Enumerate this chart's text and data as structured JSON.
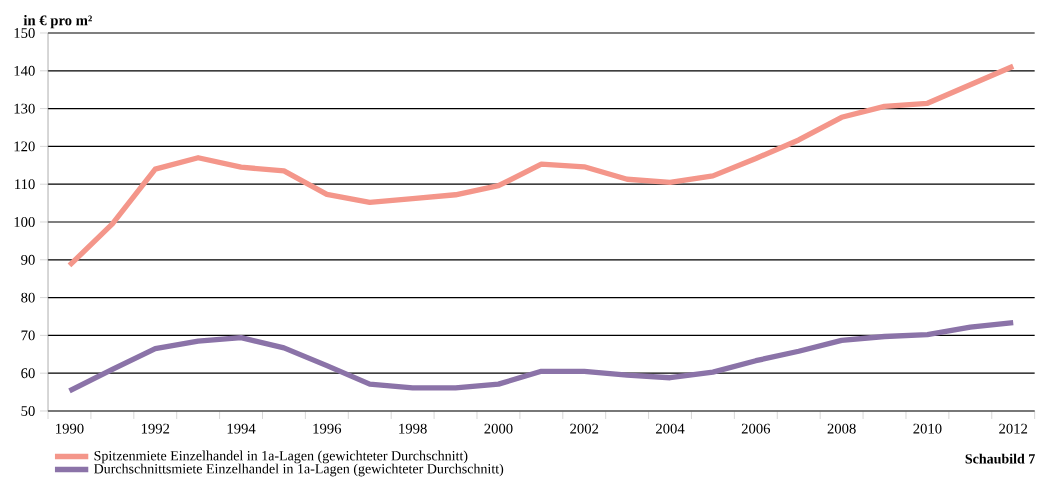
{
  "chart_data": {
    "type": "line",
    "ylabel": "in € pro m²",
    "categories": [
      "1990",
      null,
      "1992",
      null,
      "1994",
      null,
      "1996",
      null,
      "1998",
      null,
      "2000",
      null,
      "2002",
      null,
      "2004",
      null,
      "2006",
      null,
      "2008",
      null,
      "2010",
      null,
      "2012"
    ],
    "series": [
      {
        "name": "Spitzenmiete Einzelhandel in 1a-Lagen (gewichteter Durchschnitt)",
        "color": "#f4968a",
        "values": [
          88.5,
          99.5,
          114,
          117,
          114.5,
          113.5,
          107.3,
          105.2,
          106.2,
          107.2,
          109.6,
          115.3,
          114.6,
          111.3,
          110.5,
          112.2,
          116.8,
          121.7,
          127.7,
          130.6,
          131.4,
          136.3,
          141.2
        ]
      },
      {
        "name": "Durchschnittsmiete Einzelhandel in 1a-Lagen (gewichteter Durchschnitt)",
        "color": "#8b73a8",
        "values": [
          55.3,
          61,
          66.5,
          68.5,
          69.4,
          66.7,
          62,
          57.1,
          56.1,
          56.1,
          57.1,
          60.5,
          60.5,
          59.5,
          58.8,
          60.3,
          63.3,
          65.8,
          68.7,
          69.7,
          70.2,
          72.2,
          73.4
        ]
      }
    ],
    "ylim": [
      50,
      150
    ],
    "yticks": [
      50,
      60,
      70,
      80,
      90,
      100,
      110,
      120,
      130,
      140,
      150
    ],
    "grid": "y",
    "legend": "bottom",
    "marker": "none",
    "line_style": "solid",
    "annotations": [
      "Schaubild 7"
    ]
  }
}
